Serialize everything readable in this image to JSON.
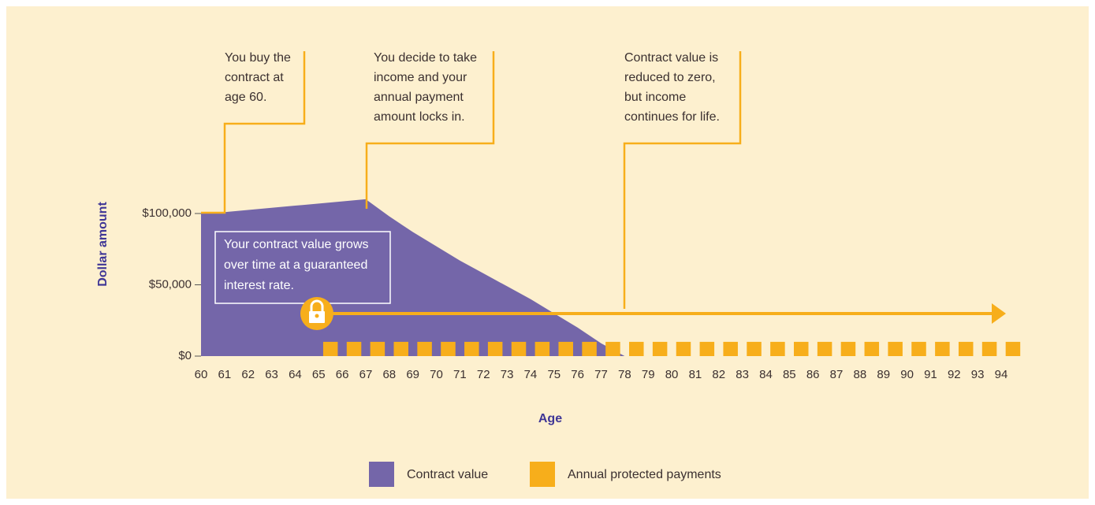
{
  "chart_data": {
    "type": "area",
    "x_label": "Age",
    "y_label": "Dollar amount",
    "x": [
      60,
      61,
      62,
      63,
      64,
      65,
      66,
      67,
      68,
      69,
      70,
      71,
      72,
      73,
      74,
      75,
      76,
      77,
      78,
      79,
      80,
      81,
      82,
      83,
      84,
      85,
      86,
      87,
      88,
      89,
      90,
      91,
      92,
      93,
      94
    ],
    "xlim": [
      60,
      94
    ],
    "xticks": [
      60,
      61,
      62,
      63,
      64,
      65,
      66,
      67,
      68,
      69,
      70,
      71,
      72,
      73,
      74,
      75,
      76,
      77,
      78,
      79,
      80,
      81,
      82,
      83,
      84,
      85,
      86,
      87,
      88,
      89,
      90,
      91,
      92,
      93,
      94
    ],
    "ylim": [
      0,
      100000
    ],
    "yticks": [
      {
        "value": 0,
        "label": "$0"
      },
      {
        "value": 50000,
        "label": "$50,000"
      },
      {
        "value": 100000,
        "label": "$100,000"
      }
    ],
    "series": [
      {
        "name": "Contract value",
        "color": "#7466a9",
        "type": "area",
        "values": [
          100000,
          101000,
          102500,
          104000,
          105500,
          107000,
          108500,
          110000,
          98000,
          87000,
          77000,
          67000,
          58000,
          49000,
          40000,
          30000,
          20000,
          9000,
          0,
          null,
          null,
          null,
          null,
          null,
          null,
          null,
          null,
          null,
          null,
          null,
          null,
          null,
          null,
          null,
          null
        ]
      },
      {
        "name": "Annual protected payments",
        "color": "#f7ae1b",
        "type": "bar",
        "values": [
          null,
          null,
          null,
          null,
          null,
          10000,
          10000,
          10000,
          10000,
          10000,
          10000,
          10000,
          10000,
          10000,
          10000,
          10000,
          10000,
          10000,
          10000,
          10000,
          10000,
          10000,
          10000,
          10000,
          10000,
          10000,
          10000,
          10000,
          10000,
          10000,
          10000,
          10000,
          10000,
          10000,
          10000
        ]
      }
    ],
    "annotations": [
      {
        "lines": [
          "You buy the",
          "contract at",
          "age 60."
        ]
      },
      {
        "lines": [
          "You decide to take",
          "income and your",
          "annual payment",
          "amount locks in."
        ]
      },
      {
        "lines": [
          "Contract value is",
          "reduced to zero,",
          "but income",
          "continues for life."
        ]
      },
      {
        "lines": [
          "Your contract value grows",
          "over time at a guaranteed",
          "interest rate."
        ]
      }
    ]
  }
}
